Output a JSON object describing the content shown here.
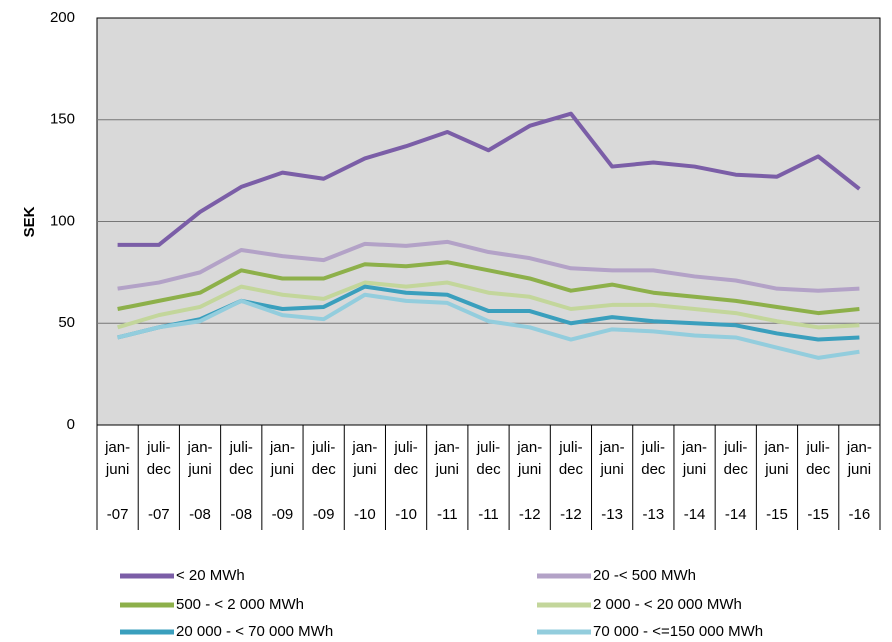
{
  "chart_data": {
    "type": "line",
    "y_label": "SEK",
    "categories": [
      [
        "jan-",
        "juni",
        "-07"
      ],
      [
        "juli-",
        "dec",
        "-07"
      ],
      [
        "jan-",
        "juni",
        "-08"
      ],
      [
        "juli-",
        "dec",
        "-08"
      ],
      [
        "jan-",
        "juni",
        "-09"
      ],
      [
        "juli-",
        "dec",
        "-09"
      ],
      [
        "jan-",
        "juni",
        "-10"
      ],
      [
        "juli-",
        "dec",
        "-10"
      ],
      [
        "jan-",
        "juni",
        "-11"
      ],
      [
        "juli-",
        "dec",
        "-11"
      ],
      [
        "jan-",
        "juni",
        "-12"
      ],
      [
        "juli-",
        "dec",
        "-12"
      ],
      [
        "jan-",
        "juni",
        "-13"
      ],
      [
        "juli-",
        "dec",
        "-13"
      ],
      [
        "jan-",
        "juni",
        "-14"
      ],
      [
        "juli-",
        "dec",
        "-14"
      ],
      [
        "jan-",
        "juni",
        "-15"
      ],
      [
        "juli-",
        "dec",
        "-15"
      ],
      [
        "jan-",
        "juni",
        "-16"
      ]
    ],
    "series": [
      {
        "name": "< 20 MWh",
        "color": "#7b5ea7",
        "values": [
          88.5,
          88.5,
          104.7,
          117,
          124,
          121,
          131,
          137,
          144,
          135,
          147,
          153,
          127,
          129,
          127,
          123,
          122,
          132,
          116
        ]
      },
      {
        "name": "20 -< 500 MWh",
        "color": "#b3a2c7",
        "values": [
          67,
          70,
          75,
          86,
          83,
          81,
          89,
          88,
          90,
          85,
          82,
          77,
          76,
          76,
          73,
          71,
          67,
          66,
          67
        ]
      },
      {
        "name": "500 - < 2 000 MWh",
        "color": "#8db04a",
        "values": [
          57,
          61,
          65,
          76,
          72,
          72,
          79,
          78,
          80,
          76,
          72,
          66,
          69,
          65,
          63,
          61,
          58,
          55,
          57
        ]
      },
      {
        "name": "2 000 - < 20 000 MWh",
        "color": "#c3d69b",
        "values": [
          48,
          54,
          58,
          68,
          64,
          62,
          70,
          68,
          70,
          65,
          63,
          57,
          59,
          59,
          57,
          55,
          51,
          48,
          49
        ]
      },
      {
        "name": "20 000 - < 70 000 MWh",
        "color": "#3a9fbd",
        "values": [
          43,
          48,
          52,
          61,
          57,
          58,
          68,
          65,
          64,
          56,
          56,
          50,
          53,
          51,
          50,
          49,
          45,
          42,
          43
        ]
      },
      {
        "name": "70 000 - <=150 000 MWh",
        "color": "#93cddd",
        "values": [
          43,
          48,
          51,
          61,
          54,
          52,
          64,
          61,
          60,
          51,
          48,
          42,
          47,
          46,
          44,
          43,
          38,
          33,
          36
        ]
      }
    ],
    "ylim": [
      0,
      200
    ],
    "yticks": [
      0,
      50,
      100,
      150,
      200
    ],
    "grid": true,
    "background": "#d9d9d9"
  }
}
